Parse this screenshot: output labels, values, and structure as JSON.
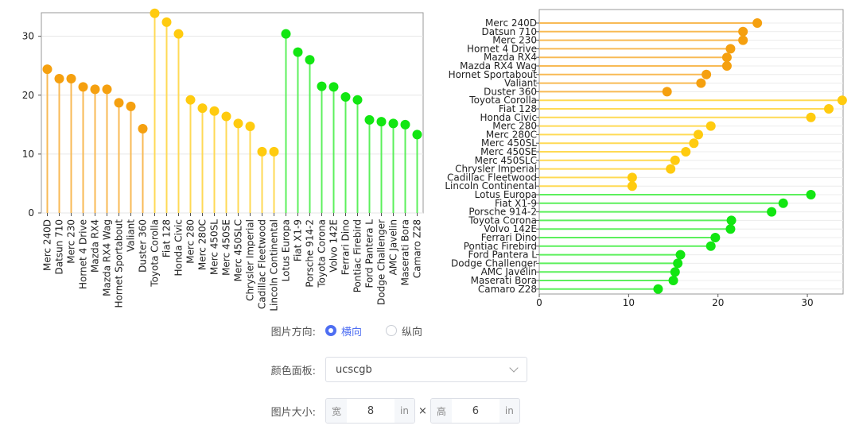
{
  "chart_data": [
    {
      "type": "lollipop",
      "orientation": "vertical",
      "categories": [
        "Merc 240D",
        "Datsun 710",
        "Merc 230",
        "Hornet 4 Drive",
        "Mazda RX4",
        "Mazda RX4 Wag",
        "Hornet Sportabout",
        "Valiant",
        "Duster 360",
        "Toyota Corolla",
        "Fiat 128",
        "Honda Civic",
        "Merc 280",
        "Merc 280C",
        "Merc 450SL",
        "Merc 450SE",
        "Merc 450SLC",
        "Chrysler Imperial",
        "Cadillac Fleetwood",
        "Lincoln Continental",
        "Lotus Europa",
        "Fiat X1-9",
        "Porsche 914-2",
        "Toyota Corona",
        "Volvo 142E",
        "Ferrari Dino",
        "Pontiac Firebird",
        "Ford Pantera L",
        "Dodge Challenger",
        "AMC Javelin",
        "Maserati Bora",
        "Camaro Z28"
      ],
      "values": [
        24.4,
        22.8,
        22.8,
        21.4,
        21.0,
        21.0,
        18.7,
        18.1,
        14.3,
        33.9,
        32.4,
        30.4,
        19.2,
        17.8,
        17.3,
        16.4,
        15.2,
        14.7,
        10.4,
        10.4,
        30.4,
        27.3,
        26.0,
        21.5,
        21.4,
        19.7,
        19.2,
        15.8,
        15.5,
        15.2,
        15.0,
        13.3
      ],
      "groups": [
        0,
        0,
        0,
        0,
        0,
        0,
        0,
        0,
        0,
        1,
        1,
        1,
        1,
        1,
        1,
        1,
        1,
        1,
        1,
        1,
        2,
        2,
        2,
        2,
        2,
        2,
        2,
        2,
        2,
        2,
        2,
        2
      ],
      "group_colors": [
        "#f5a00f",
        "#ffcb0f",
        "#12e612"
      ],
      "stem_colors": [
        "#f8ba55",
        "#ffda55",
        "#5cf05c"
      ],
      "ylim": [
        0,
        34
      ],
      "yticks": [
        0,
        10,
        20,
        30
      ],
      "grid": true
    },
    {
      "type": "lollipop",
      "orientation": "horizontal",
      "categories": [
        "Merc 240D",
        "Datsun 710",
        "Merc 230",
        "Hornet 4 Drive",
        "Mazda RX4",
        "Mazda RX4 Wag",
        "Hornet Sportabout",
        "Valiant",
        "Duster 360",
        "Toyota Corolla",
        "Fiat 128",
        "Honda Civic",
        "Merc 280",
        "Merc 280C",
        "Merc 450SL",
        "Merc 450SE",
        "Merc 450SLC",
        "Chrysler Imperial",
        "Cadillac Fleetwood",
        "Lincoln Continental",
        "Lotus Europa",
        "Fiat X1-9",
        "Porsche 914-2",
        "Toyota Corona",
        "Volvo 142E",
        "Ferrari Dino",
        "Pontiac Firebird",
        "Ford Pantera L",
        "Dodge Challenger",
        "AMC Javelin",
        "Maserati Bora",
        "Camaro Z28"
      ],
      "values": [
        24.4,
        22.8,
        22.8,
        21.4,
        21.0,
        21.0,
        18.7,
        18.1,
        14.3,
        33.9,
        32.4,
        30.4,
        19.2,
        17.8,
        17.3,
        16.4,
        15.2,
        14.7,
        10.4,
        10.4,
        30.4,
        27.3,
        26.0,
        21.5,
        21.4,
        19.7,
        19.2,
        15.8,
        15.5,
        15.2,
        15.0,
        13.3
      ],
      "groups": [
        0,
        0,
        0,
        0,
        0,
        0,
        0,
        0,
        0,
        1,
        1,
        1,
        1,
        1,
        1,
        1,
        1,
        1,
        1,
        1,
        2,
        2,
        2,
        2,
        2,
        2,
        2,
        2,
        2,
        2,
        2,
        2
      ],
      "group_colors": [
        "#f5a00f",
        "#ffcb0f",
        "#12e612"
      ],
      "stem_colors": [
        "#f8ba55",
        "#ffda55",
        "#5cf05c"
      ],
      "xlim": [
        0,
        34
      ],
      "xticks": [
        0,
        10,
        20,
        30
      ],
      "grid": true
    }
  ],
  "controls": {
    "orientation": {
      "label": "图片方向:",
      "options": [
        {
          "label": "横向",
          "selected": true
        },
        {
          "label": "纵向",
          "selected": false
        }
      ]
    },
    "palette": {
      "label": "颜色面板:",
      "value": "ucscgb",
      "icon": "chevron-down-icon"
    },
    "size": {
      "label": "图片大小:",
      "width_prefix": "宽",
      "width_value": "8",
      "width_unit": "in",
      "times": "×",
      "height_prefix": "高",
      "height_value": "6",
      "height_unit": "in"
    },
    "accent_color": "#4e6ef2"
  }
}
